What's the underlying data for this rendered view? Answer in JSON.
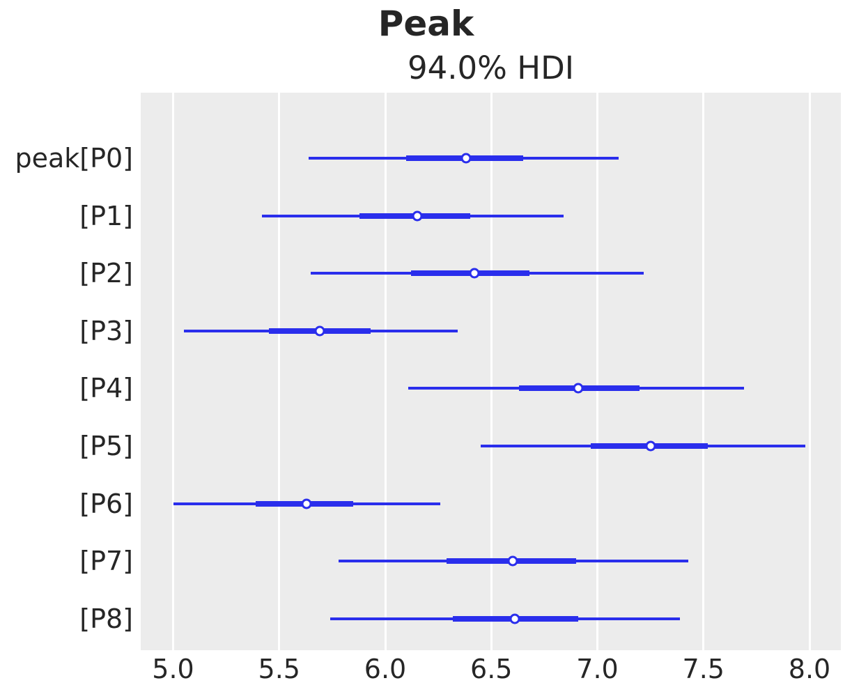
{
  "colors": {
    "line_blue": "#2a2eec",
    "plot_background": "#ececec",
    "gridline": "#ffffff",
    "text": "#262626",
    "marker_face": "#ffffff",
    "figure_background": "#ffffff"
  },
  "chart_data": {
    "type": "forest",
    "title": "Peak",
    "subtitle": "94.0% HDI",
    "hdi_probability": "94.0%",
    "xlabel": "",
    "ylabel": "",
    "xlim": [
      4.85,
      8.14
    ],
    "xticks": [
      5.0,
      5.5,
      6.0,
      6.5,
      7.0,
      7.5,
      8.0
    ],
    "grid": "vertical white gridlines on gray axes background",
    "legend": "none",
    "rows": [
      {
        "label": "peak[P0]",
        "hdi_low": 5.64,
        "hdi_high": 7.1,
        "quartile_low": 6.1,
        "quartile_high": 6.65,
        "median": 6.38
      },
      {
        "label": "[P1]",
        "hdi_low": 5.42,
        "hdi_high": 6.84,
        "quartile_low": 5.88,
        "quartile_high": 6.4,
        "median": 6.15
      },
      {
        "label": "[P2]",
        "hdi_low": 5.65,
        "hdi_high": 7.22,
        "quartile_low": 6.12,
        "quartile_high": 6.68,
        "median": 6.42
      },
      {
        "label": "[P3]",
        "hdi_low": 5.05,
        "hdi_high": 6.34,
        "quartile_low": 5.45,
        "quartile_high": 5.93,
        "median": 5.69
      },
      {
        "label": "[P4]",
        "hdi_low": 6.11,
        "hdi_high": 7.69,
        "quartile_low": 6.63,
        "quartile_high": 7.2,
        "median": 6.91
      },
      {
        "label": "[P5]",
        "hdi_low": 6.45,
        "hdi_high": 7.98,
        "quartile_low": 6.97,
        "quartile_high": 7.52,
        "median": 7.25
      },
      {
        "label": "[P6]",
        "hdi_low": 5.0,
        "hdi_high": 6.26,
        "quartile_low": 5.39,
        "quartile_high": 5.85,
        "median": 5.63
      },
      {
        "label": "[P7]",
        "hdi_low": 5.78,
        "hdi_high": 7.43,
        "quartile_low": 6.29,
        "quartile_high": 6.9,
        "median": 6.6
      },
      {
        "label": "[P8]",
        "hdi_low": 5.74,
        "hdi_high": 7.39,
        "quartile_low": 6.32,
        "quartile_high": 6.91,
        "median": 6.61
      }
    ]
  }
}
